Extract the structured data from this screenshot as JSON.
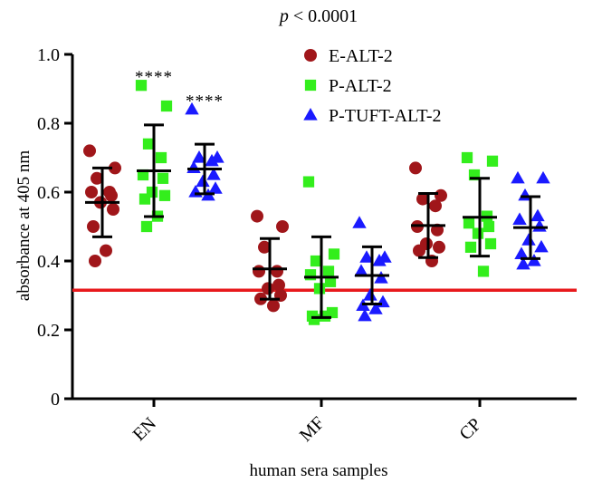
{
  "chart_data": {
    "type": "scatter",
    "title": "p < 0.0001",
    "title_parts": {
      "p": "p",
      "rest": " < 0.0001"
    },
    "xlabel": "human sera samples",
    "ylabel": "absorbance at 405 nm",
    "ylim": [
      0,
      1.0
    ],
    "yticks": [
      0,
      0.2,
      0.4,
      0.6,
      0.8,
      1.0
    ],
    "ytick_labels": [
      "0",
      "0.2",
      "0.4",
      "0.6",
      "0.8",
      "1.0"
    ],
    "categories": [
      "EN",
      "MF",
      "CP"
    ],
    "grid": false,
    "legend_position": "top-center",
    "cutoff_line": {
      "value": 0.315,
      "color": "#e8191c"
    },
    "error_bars": "mean ± SD",
    "series": [
      {
        "name": "E-ALT-2",
        "marker": "circle",
        "color": "#a0161a",
        "points": {
          "EN": [
            0.72,
            0.67,
            0.64,
            0.6,
            0.6,
            0.59,
            0.57,
            0.55,
            0.5,
            0.43,
            0.4
          ],
          "MF": [
            0.53,
            0.5,
            0.44,
            0.37,
            0.37,
            0.33,
            0.32,
            0.3,
            0.29,
            0.27
          ],
          "CP": [
            0.67,
            0.59,
            0.58,
            0.56,
            0.5,
            0.49,
            0.45,
            0.44,
            0.43,
            0.4
          ]
        },
        "stats": {
          "EN": [
            0.57,
            0.1
          ],
          "MF": [
            0.377,
            0.088
          ],
          "CP": [
            0.503,
            0.093
          ]
        }
      },
      {
        "name": "P-ALT-2",
        "marker": "square",
        "color": "#33ee1c",
        "points": {
          "EN": [
            0.91,
            0.85,
            0.74,
            0.7,
            0.65,
            0.64,
            0.6,
            0.59,
            0.58,
            0.53,
            0.5
          ],
          "MF": [
            0.63,
            0.42,
            0.4,
            0.37,
            0.36,
            0.34,
            0.32,
            0.25,
            0.24,
            0.24,
            0.23
          ],
          "CP": [
            0.7,
            0.69,
            0.65,
            0.53,
            0.51,
            0.5,
            0.48,
            0.45,
            0.44,
            0.37
          ]
        },
        "stats": {
          "EN": [
            0.662,
            0.133
          ],
          "MF": [
            0.353,
            0.117
          ],
          "CP": [
            0.527,
            0.113
          ]
        }
      },
      {
        "name": "P-TUFT-ALT-2",
        "marker": "triangle",
        "color": "#1a1aff",
        "points": {
          "EN": [
            0.84,
            0.7,
            0.7,
            0.69,
            0.67,
            0.65,
            0.63,
            0.61,
            0.6,
            0.59
          ],
          "MF": [
            0.51,
            0.41,
            0.41,
            0.4,
            0.37,
            0.35,
            0.3,
            0.28,
            0.27,
            0.26,
            0.24
          ],
          "CP": [
            0.64,
            0.64,
            0.59,
            0.53,
            0.52,
            0.5,
            0.46,
            0.44,
            0.42,
            0.4,
            0.39
          ]
        },
        "stats": {
          "EN": [
            0.667,
            0.072
          ],
          "MF": [
            0.358,
            0.083
          ],
          "CP": [
            0.497,
            0.09
          ]
        }
      }
    ],
    "annotations": [
      {
        "text": "****",
        "series": "P-ALT-2",
        "category": "EN",
        "y": 0.955
      },
      {
        "text": "****",
        "series": "P-TUFT-ALT-2",
        "category": "EN",
        "y": 0.885
      }
    ]
  }
}
